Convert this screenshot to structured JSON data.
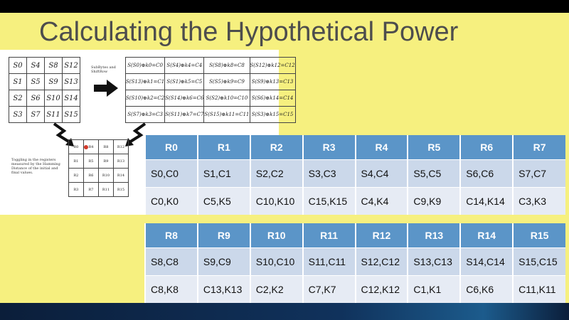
{
  "title": "Calculating the Hypothetical Power",
  "figure": {
    "state_grid": [
      [
        "S0",
        "S4",
        "S8",
        "S12"
      ],
      [
        "S1",
        "S5",
        "S9",
        "S13"
      ],
      [
        "S2",
        "S6",
        "S10",
        "S14"
      ],
      [
        "S3",
        "S7",
        "S11",
        "S15"
      ]
    ],
    "shift_caption": "SubBytes and ShiftRow",
    "cipher_grid": [
      [
        "S(S0)⊕k0=C0",
        "S(S4)⊕k4=C4",
        "S(S8)⊕k8=C8",
        "S(S12)⊕k12=C12"
      ],
      [
        "S(S13)⊕k1=C1",
        "S(S1)⊕k5=C5",
        "S(S5)⊕k9=C9",
        "S(S9)⊕k13=C13"
      ],
      [
        "S(S10)⊕k2=C2",
        "S(S14)⊕k6=C6",
        "S(S2)⊕k10=C10",
        "S(S6)⊕k14=C14"
      ],
      [
        "S(S7)⊕k3=C3",
        "S(S11)⊕k7=C7",
        "S(S15)⊕k11=C11",
        "S(S3)⊕k15=C15"
      ]
    ],
    "register_grid": [
      [
        "R0",
        "R4",
        "R8",
        "R12"
      ],
      [
        "R1",
        "R5",
        "R9",
        "R13"
      ],
      [
        "R2",
        "R6",
        "R10",
        "R14"
      ],
      [
        "R3",
        "R7",
        "R11",
        "R15"
      ]
    ],
    "toggle_caption": "Toggling in the registers measured by the Hamming Distance of the initial and final values."
  },
  "table1": {
    "headers": [
      "R0",
      "R1",
      "R2",
      "R3",
      "R4",
      "R5",
      "R6",
      "R7"
    ],
    "rows": [
      [
        "S0,C0",
        "S1,C1",
        "S2,C2",
        "S3,C3",
        "S4,C4",
        "S5,C5",
        "S6,C6",
        "S7,C7"
      ],
      [
        "C0,K0",
        "C5,K5",
        "C10,K10",
        "C15,K15",
        "C4,K4",
        "C9,K9",
        "C14,K14",
        "C3,K3"
      ]
    ]
  },
  "table2": {
    "headers": [
      "R8",
      "R9",
      "R10",
      "R11",
      "R12",
      "R13",
      "R14",
      "R15"
    ],
    "rows": [
      [
        "S8,C8",
        "S9,C9",
        "S10,C10",
        "S11,C11",
        "S12,C12",
        "S13,C13",
        "S14,C14",
        "S15,C15"
      ],
      [
        "C8,K8",
        "C13,K13",
        "C2,K2",
        "C7,K7",
        "C12,K12",
        "C1,K1",
        "C6,K6",
        "C11,K11"
      ]
    ]
  },
  "colors": {
    "slide_bg": "#f6f07f",
    "header_bg": "#5b95c8",
    "row1_bg": "#cbd8ea",
    "row2_bg": "#e6ebf4"
  }
}
